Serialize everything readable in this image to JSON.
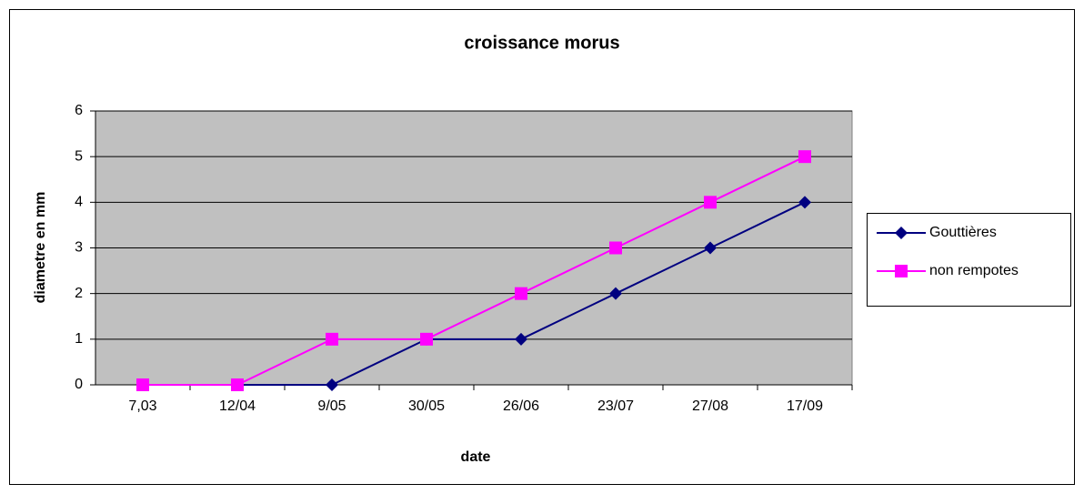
{
  "chart_data": {
    "type": "line",
    "title": "croissance morus",
    "xlabel": "date",
    "ylabel": "diametre en mm",
    "categories": [
      "7,03",
      "12/04",
      "9/05",
      "30/05",
      "26/06",
      "23/07",
      "27/08",
      "17/09"
    ],
    "series": [
      {
        "name": "Gouttières",
        "color": "#000080",
        "marker": "diamond",
        "values": [
          0,
          0,
          0,
          1,
          1,
          2,
          3,
          4
        ]
      },
      {
        "name": "non rempotes",
        "color": "#ff00ff",
        "marker": "square",
        "values": [
          0,
          0,
          1,
          1,
          2,
          3,
          4,
          5
        ]
      }
    ],
    "ylim": [
      0,
      6
    ],
    "yticks": [
      0,
      1,
      2,
      3,
      4,
      5,
      6
    ],
    "grid": true,
    "legend": "right"
  }
}
